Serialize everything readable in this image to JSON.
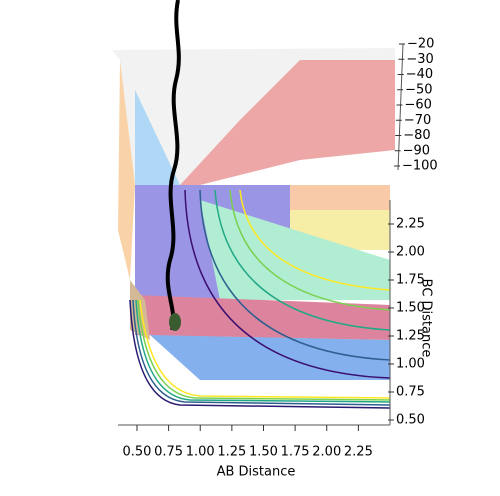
{
  "chart_data": {
    "type": "surface3d",
    "xlabel": "AB Distance",
    "ylabel": "BC Distance",
    "xlim": [
      0.35,
      2.5
    ],
    "xticks": [
      {
        "value": 0.5,
        "label": "0.50"
      },
      {
        "value": 0.75,
        "label": "0.75"
      },
      {
        "value": 1.0,
        "label": "1.00"
      },
      {
        "value": 1.25,
        "label": "1.25"
      },
      {
        "value": 1.5,
        "label": "1.50"
      },
      {
        "value": 1.75,
        "label": "1.75"
      },
      {
        "value": 2.0,
        "label": "2.00"
      },
      {
        "value": 2.25,
        "label": "2.25"
      }
    ],
    "ylim": [
      0.5,
      2.5
    ],
    "yticks": [
      {
        "value": 0.5,
        "label": "0.50"
      },
      {
        "value": 0.75,
        "label": "0.75"
      },
      {
        "value": 1.0,
        "label": "1.00"
      },
      {
        "value": 1.25,
        "label": "1.25"
      },
      {
        "value": 1.5,
        "label": "1.50"
      },
      {
        "value": 1.75,
        "label": "1.75"
      },
      {
        "value": 2.0,
        "label": "2.00"
      },
      {
        "value": 2.25,
        "label": "2.25"
      }
    ],
    "zlim": [
      -100,
      -20
    ],
    "zticks": [
      {
        "value": -20,
        "label": "−20"
      },
      {
        "value": -30,
        "label": "−30"
      },
      {
        "value": -40,
        "label": "−40"
      },
      {
        "value": -50,
        "label": "−50"
      },
      {
        "value": -60,
        "label": "−60"
      },
      {
        "value": -70,
        "label": "−70"
      },
      {
        "value": -80,
        "label": "−80"
      },
      {
        "value": -90,
        "label": "−90"
      },
      {
        "value": -100,
        "label": "−100"
      }
    ]
  }
}
